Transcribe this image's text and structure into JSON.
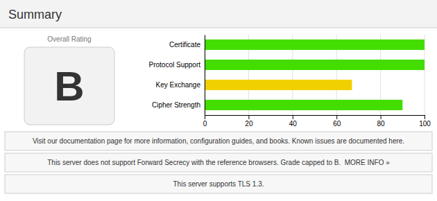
{
  "chart_data": {
    "type": "bar",
    "orientation": "horizontal",
    "title": "Summary",
    "categories": [
      "Certificate",
      "Protocol Support",
      "Key Exchange",
      "Cipher Strength"
    ],
    "values": [
      100,
      100,
      67,
      90
    ],
    "colors": [
      "#44dd00",
      "#44dd00",
      "#f0d000",
      "#44dd00"
    ],
    "xlim": [
      0,
      100
    ],
    "xticks": [
      0,
      20,
      40,
      60,
      80,
      100
    ],
    "grid": true,
    "annotations": [
      "Overall Rating",
      "B",
      "Visit our documentation page for more information, configuration guides, and books. Known issues are documented here.",
      "This server does not support Forward Secrecy with the reference browsers. Grade capped to B.  MORE INFO »",
      "This server supports TLS 1.3."
    ]
  }
}
